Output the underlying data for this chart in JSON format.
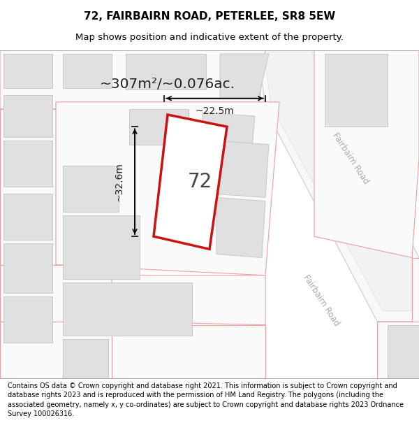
{
  "title": "72, FAIRBAIRN ROAD, PETERLEE, SR8 5EW",
  "subtitle": "Map shows position and indicative extent of the property.",
  "footer": "Contains OS data © Crown copyright and database right 2021. This information is subject to Crown copyright and database rights 2023 and is reproduced with the permission of HM Land Registry. The polygons (including the associated geometry, namely x, y co-ordinates) are subject to Crown copyright and database rights 2023 Ordnance Survey 100026316.",
  "map_bg": "#ffffff",
  "parcel_fill": "#f5f5f5",
  "parcel_edge": "#e8a0a0",
  "building_fill": "#e0e0e0",
  "building_edge": "#c8c8c8",
  "road_fill": "#ffffff",
  "road_edge": "#cccccc",
  "highlight_fill": "#ffffff",
  "highlight_edge": "#cc1111",
  "highlight_lw": 2.5,
  "road_label_color": "#aaaaaa",
  "area_text": "~307m²/~0.076ac.",
  "label_72": "72",
  "label_width": "~22.5m",
  "label_height": "~32.6m",
  "road_label": "Fairbairn Road",
  "title_fontsize": 11,
  "subtitle_fontsize": 9.5,
  "footer_fontsize": 7.0
}
